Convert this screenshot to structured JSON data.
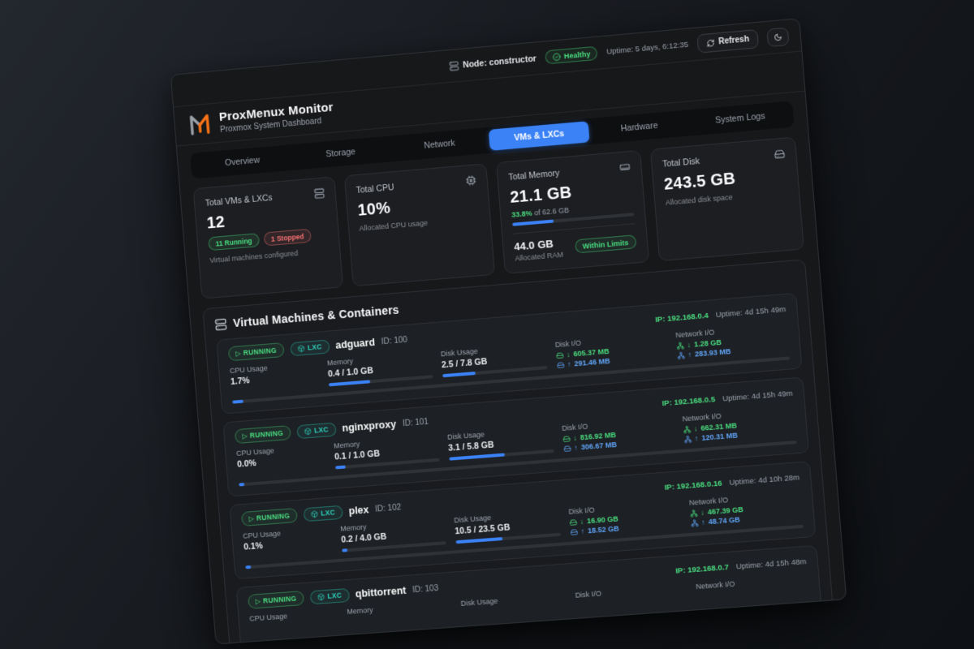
{
  "colors": {
    "accent_blue": "#3b82f6",
    "status_green": "#4ade80",
    "status_red": "#f87171",
    "lxc_teal": "#2dd4bf",
    "io_up_blue": "#60a5fa",
    "panel_bg": "#17181a"
  },
  "toolbar": {
    "node_label": "Node: constructor",
    "health_badge": "Healthy",
    "uptime": "Uptime: 5 days, 6:12:35",
    "refresh_label": "Refresh"
  },
  "header": {
    "title": "ProxMenux Monitor",
    "subtitle": "Proxmox System Dashboard"
  },
  "tabs": [
    {
      "label": "Overview",
      "active": false
    },
    {
      "label": "Storage",
      "active": false
    },
    {
      "label": "Network",
      "active": false
    },
    {
      "label": "VMs & LXCs",
      "active": true
    },
    {
      "label": "Hardware",
      "active": false
    },
    {
      "label": "System Logs",
      "active": false
    }
  ],
  "stats": {
    "vms": {
      "label": "Total VMs & LXCs",
      "value": "12",
      "running_badge": "11 Running",
      "stopped_badge": "1 Stopped",
      "caption": "Virtual machines configured"
    },
    "cpu": {
      "label": "Total CPU",
      "value": "10%",
      "caption": "Allocated CPU usage"
    },
    "memory": {
      "label": "Total Memory",
      "value": "21.1 GB",
      "percent_text": "33.8%",
      "of_text": "of 62.6 GB",
      "percent": 33.8,
      "allocated_value": "44.0 GB",
      "allocated_label": "Allocated RAM",
      "limit_badge": "Within Limits"
    },
    "disk": {
      "label": "Total Disk",
      "value": "243.5 GB",
      "caption": "Allocated disk space"
    }
  },
  "vm_section": {
    "title": "Virtual Machines & Containers",
    "labels": {
      "cpu": "CPU Usage",
      "memory": "Memory",
      "disk": "Disk Usage",
      "disk_io": "Disk I/O",
      "net_io": "Network I/O"
    },
    "arrows": {
      "down": "↓",
      "up": "↑"
    },
    "rows": [
      {
        "status": "RUNNING",
        "type": "LXC",
        "name": "adguard",
        "id": "ID: 100",
        "ip": "IP: 192.168.0.4",
        "uptime": "Uptime: 4d 15h 49m",
        "cpu_value": "1.7%",
        "cpu_pct": 2,
        "mem_value": "0.4 / 1.0 GB",
        "mem_pct": 40,
        "disk_value": "2.5 / 7.8 GB",
        "disk_pct": 32,
        "disk_down": "605.37 MB",
        "disk_up": "291.46 MB",
        "net_down": "1.28 GB",
        "net_up": "283.93 MB"
      },
      {
        "status": "RUNNING",
        "type": "LXC",
        "name": "nginxproxy",
        "id": "ID: 101",
        "ip": "IP: 192.168.0.5",
        "uptime": "Uptime: 4d 15h 49m",
        "cpu_value": "0.0%",
        "cpu_pct": 1,
        "mem_value": "0.1 / 1.0 GB",
        "mem_pct": 10,
        "disk_value": "3.1 / 5.8 GB",
        "disk_pct": 53,
        "disk_down": "816.92 MB",
        "disk_up": "306.67 MB",
        "net_down": "662.31 MB",
        "net_up": "120.31 MB"
      },
      {
        "status": "RUNNING",
        "type": "LXC",
        "name": "plex",
        "id": "ID: 102",
        "ip": "IP: 192.168.0.16",
        "uptime": "Uptime: 4d 10h 28m",
        "cpu_value": "0.1%",
        "cpu_pct": 1,
        "mem_value": "0.2 / 4.0 GB",
        "mem_pct": 5,
        "disk_value": "10.5 / 23.5 GB",
        "disk_pct": 45,
        "disk_down": "16.90 GB",
        "disk_up": "18.52 GB",
        "net_down": "467.39 GB",
        "net_up": "48.74 GB"
      },
      {
        "status": "RUNNING",
        "type": "LXC",
        "name": "qbittorrent",
        "id": "ID: 103",
        "ip": "IP: 192.168.0.7",
        "uptime": "Uptime: 4d 15h 48m",
        "cpu_value": "",
        "cpu_pct": null,
        "mem_value": "",
        "mem_pct": null,
        "disk_value": "",
        "disk_pct": null,
        "disk_down": "",
        "disk_up": "",
        "net_down": "",
        "net_up": ""
      }
    ]
  }
}
